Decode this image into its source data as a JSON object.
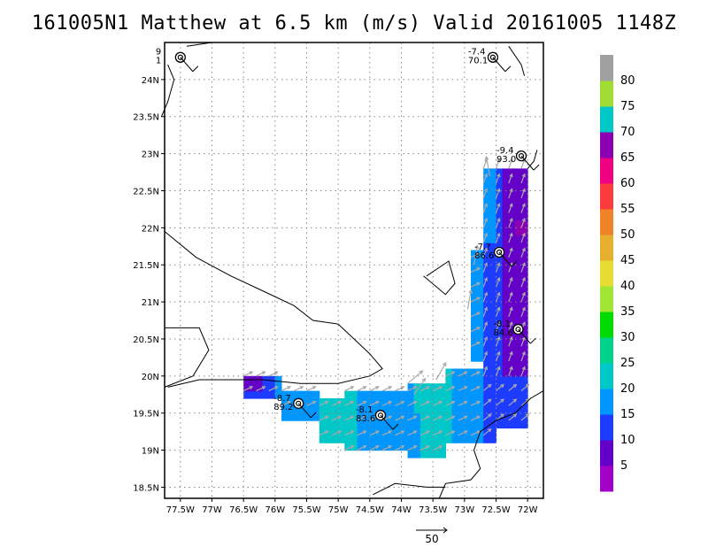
{
  "title": "161005N1 Matthew at 6.5 km (m/s) Valid 20161005 1148Z",
  "chart_data": {
    "type": "map",
    "x_ticks": [
      "77.5W",
      "77W",
      "76.5W",
      "76W",
      "75.5W",
      "75W",
      "74.5W",
      "74W",
      "73.5W",
      "73W",
      "72.5W",
      "72W"
    ],
    "y_ticks": [
      "18.5N",
      "19N",
      "19.5N",
      "20N",
      "20.5N",
      "21N",
      "21.5N",
      "22N",
      "22.5N",
      "23N",
      "23.5N",
      "24N"
    ],
    "grid": true,
    "colorbar": {
      "labels": [
        "5",
        "10",
        "15",
        "20",
        "25",
        "30",
        "35",
        "40",
        "45",
        "50",
        "55",
        "60",
        "65",
        "70",
        "75",
        "80"
      ],
      "colors": [
        "#a000c8",
        "#6400c8",
        "#1e3cff",
        "#0096ff",
        "#00c8c8",
        "#00d28c",
        "#00dc00",
        "#a0e632",
        "#e6dc32",
        "#e6af2d",
        "#f08228",
        "#fa3c3c",
        "#f00082",
        "#8c00b4",
        "#00c8c8",
        "#a0dc32",
        "#a0a0a0"
      ]
    },
    "vector_key": "50",
    "storm_fixes": [
      {
        "lon": -77.5,
        "lat": 24.3,
        "label": "9\n1"
      },
      {
        "lon": -72.55,
        "lat": 24.3,
        "label": "-7.4\n70.1"
      },
      {
        "lon": -72.1,
        "lat": 22.97,
        "label": "-9.4\n93.0"
      },
      {
        "lon": -72.45,
        "lat": 21.67,
        "label": "-7.?\n86.6"
      },
      {
        "lon": -72.15,
        "lat": 20.63,
        "label": "-8.1\n84.6"
      },
      {
        "lon": -75.63,
        "lat": 19.63,
        "label": "-8.7\n89.2"
      },
      {
        "lon": -74.33,
        "lat": 19.47,
        "label": "-8.1\n83.6"
      }
    ]
  }
}
